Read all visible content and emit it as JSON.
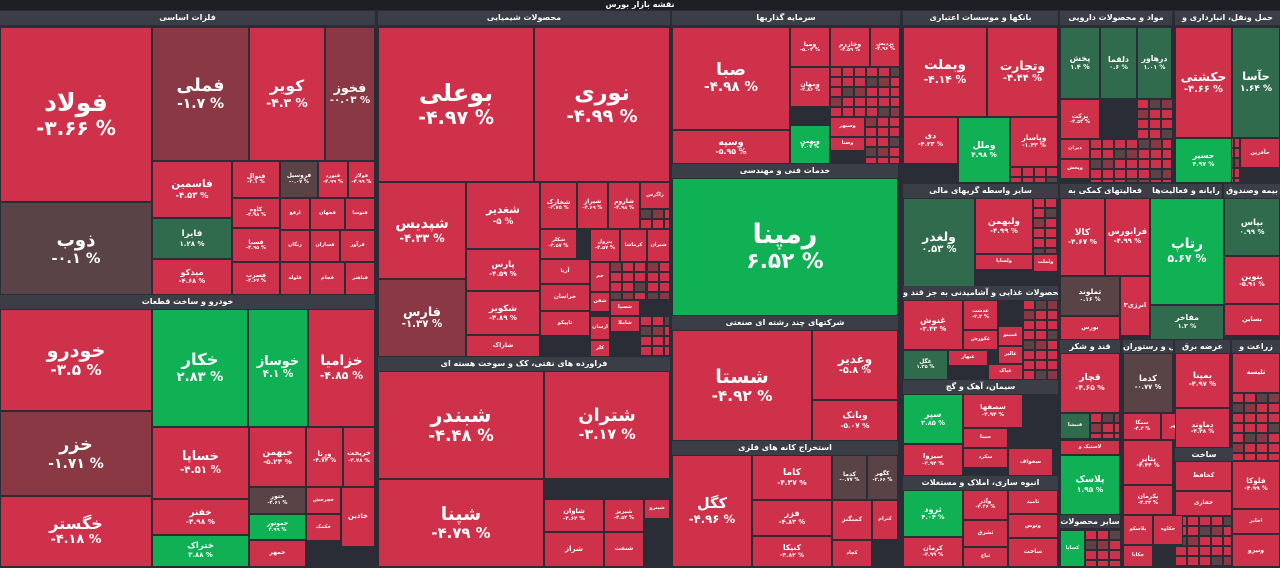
{
  "header": {
    "title": "نقشه بازار بورس"
  },
  "colors": {
    "red": "#d0314a",
    "dark_red": "#8a3844",
    "muted": "#5a4346",
    "green": "#10b155",
    "dark_green": "#2f6b4c",
    "header_bg": "#3b3e46",
    "page_bg": "#2a2d35"
  },
  "sectors": [
    {
      "name": "فلزات اساسی"
    },
    {
      "name": "محصولات شیمیایی"
    },
    {
      "name": "سرمایه گذاریها"
    },
    {
      "name": "بانکها و موسسات اعتباری"
    },
    {
      "name": "مواد و محصولات دارویی"
    },
    {
      "name": "حمل ونقل، انبارداری و"
    },
    {
      "name": "خودرو و ساخت قطعات"
    },
    {
      "name": "خدمات فنی و مهندسی"
    },
    {
      "name": "سایر واسطه گریهای مالی"
    },
    {
      "name": "فعالیتهای کمکی به"
    },
    {
      "name": "رایانه و فعالیت‌ها"
    },
    {
      "name": "بیمه وصندوق"
    },
    {
      "name": "فراورده های نفتی، کک و سوخت هسته ای"
    },
    {
      "name": "شرکتهای چند رشته ای صنعتی"
    },
    {
      "name": "محصولات غذایی و آشامیدنی به جز قند و"
    },
    {
      "name": "قند و شکر"
    },
    {
      "name": "هتل و رستوران"
    },
    {
      "name": "انبوه سازی، املاک و مستغلات"
    },
    {
      "name": "سیمان، آهک و گچ"
    },
    {
      "name": "استخراج کانه های فلزی"
    },
    {
      "name": "سایر محصولات"
    },
    {
      "name": "عرضه برق"
    },
    {
      "name": "زراعت و"
    },
    {
      "name": "ساخت"
    }
  ],
  "tiles": [
    {
      "symbol": "فولاد",
      "change": "-۳.۶۶ %",
      "tone": "red"
    },
    {
      "symbol": "ذوب",
      "change": "-۰.۱ %",
      "tone": "muted"
    },
    {
      "symbol": "فملی",
      "change": "-۱.۷ %",
      "tone": "dark_red"
    },
    {
      "symbol": "کویر",
      "change": "-۴.۳ %",
      "tone": "red"
    },
    {
      "symbol": "فخوز",
      "change": "-۰.۰۳ %",
      "tone": "dark_red"
    },
    {
      "symbol": "فاسمین",
      "change": "-۴.۵۳ %",
      "tone": "red"
    },
    {
      "symbol": "فنوال",
      "change": "-۴.۱ %",
      "tone": "red"
    },
    {
      "symbol": "فروسیل",
      "change": "-۰.۰۷ %",
      "tone": "muted"
    },
    {
      "symbol": "فنورد",
      "change": "-۴.۹۹ %",
      "tone": "red"
    },
    {
      "symbol": "فولاژ",
      "change": "-۴.۹۹ %",
      "tone": "red"
    },
    {
      "symbol": "فایرا",
      "change": "۱.۲۸ %",
      "tone": "dark_green"
    },
    {
      "symbol": "کاوه",
      "change": "-۴.۹۸ %",
      "tone": "red"
    },
    {
      "symbol": "فسبا",
      "change": "-۴.۹۵ %",
      "tone": "red"
    },
    {
      "symbol": "میدکو",
      "change": "-۴.۶۸ %",
      "tone": "red"
    },
    {
      "symbol": "فسرب",
      "change": "-۴.۶۷ %",
      "tone": "red"
    },
    {
      "symbol": "ارفع",
      "change": "",
      "tone": "red"
    },
    {
      "symbol": "فجهان",
      "change": "",
      "tone": "red"
    },
    {
      "symbol": "فتوسا",
      "change": "",
      "tone": "red"
    },
    {
      "symbol": "فلوله",
      "change": "",
      "tone": "red"
    },
    {
      "symbol": "زنگان",
      "change": "",
      "tone": "red"
    },
    {
      "symbol": "فسازان",
      "change": "",
      "tone": "red"
    },
    {
      "symbol": "فرآور",
      "change": "",
      "tone": "red"
    },
    {
      "symbol": "فجام",
      "change": "",
      "tone": "red"
    },
    {
      "symbol": "فباهنر",
      "change": "",
      "tone": "red"
    },
    {
      "symbol": "بوعلی",
      "change": "-۴.۹۷ %",
      "tone": "red"
    },
    {
      "symbol": "نوری",
      "change": "-۴.۹۹ %",
      "tone": "red"
    },
    {
      "symbol": "شپدیس",
      "change": "-۴.۳۳ %",
      "tone": "red"
    },
    {
      "symbol": "فارس",
      "change": "-۱.۳۷ %",
      "tone": "dark_red"
    },
    {
      "symbol": "شغدیر",
      "change": "-۵ %",
      "tone": "red"
    },
    {
      "symbol": "پارس",
      "change": "-۴.۵۹ %",
      "tone": "red"
    },
    {
      "symbol": "شکویر",
      "change": "-۴.۸۹ %",
      "tone": "red"
    },
    {
      "symbol": "شپاکسا",
      "change": "",
      "tone": "red"
    },
    {
      "symbol": "شاراک",
      "change": "",
      "tone": "red"
    },
    {
      "symbol": "شخارک",
      "change": "-۴.۷۵ %",
      "tone": "red"
    },
    {
      "symbol": "شیراز",
      "change": "-۴.۶۹ %",
      "tone": "red"
    },
    {
      "symbol": "شاروم",
      "change": "-۴.۹۸ %",
      "tone": "red"
    },
    {
      "symbol": "زاگرس",
      "change": "",
      "tone": "red"
    },
    {
      "symbol": "شکلر",
      "change": "-۴.۵۷ %",
      "tone": "red"
    },
    {
      "symbol": "پترول",
      "change": "-۴.۵۷ %",
      "tone": "red"
    },
    {
      "symbol": "کرماشا",
      "change": "",
      "tone": "red"
    },
    {
      "symbol": "شیران",
      "change": "",
      "tone": "red"
    },
    {
      "symbol": "آریا",
      "change": "",
      "tone": "red"
    },
    {
      "symbol": "تاپیکو",
      "change": "",
      "tone": "red"
    },
    {
      "symbol": "خراسان",
      "change": "",
      "tone": "red"
    },
    {
      "symbol": "جم",
      "change": "",
      "tone": "red"
    },
    {
      "symbol": "شفن",
      "change": "",
      "tone": "red"
    },
    {
      "symbol": "شسپا",
      "change": "",
      "tone": "red"
    },
    {
      "symbol": "شاملا",
      "change": "",
      "tone": "red"
    },
    {
      "symbol": "ارسان",
      "change": "",
      "tone": "red"
    },
    {
      "symbol": "کلر",
      "change": "",
      "tone": "red"
    },
    {
      "symbol": "صبا",
      "change": "-۴.۹۸ %",
      "tone": "red"
    },
    {
      "symbol": "ومیا",
      "change": "-۵.۰۴ %",
      "tone": "red"
    },
    {
      "symbol": "وخارزم",
      "change": "-۴.۵۹ %",
      "tone": "red"
    },
    {
      "symbol": "پردیس",
      "change": "-۴.۹۶ %",
      "tone": "red"
    },
    {
      "symbol": "ومهان",
      "change": "-۴.۸۶ %",
      "tone": "red"
    },
    {
      "symbol": "وسپه",
      "change": "-۵.۹۵ %",
      "tone": "red"
    },
    {
      "symbol": "وبهمن",
      "change": "۲.۰۷ %",
      "tone": "green"
    },
    {
      "symbol": "وسپهر",
      "change": "",
      "tone": "red"
    },
    {
      "symbol": "وصنا",
      "change": "",
      "tone": "red"
    },
    {
      "symbol": "رمپنا",
      "change": "۶.۵۲ %",
      "tone": "green"
    },
    {
      "symbol": "وبملت",
      "change": "-۴.۱۴ %",
      "tone": "red"
    },
    {
      "symbol": "وتجارت",
      "change": "-۴.۴۴ %",
      "tone": "red"
    },
    {
      "symbol": "دی",
      "change": "-۴.۲۳ %",
      "tone": "red"
    },
    {
      "symbol": "وملل",
      "change": "۴.۹۸ %",
      "tone": "green"
    },
    {
      "symbol": "وپاسار",
      "change": "-۱.۴۳ %",
      "tone": "red"
    },
    {
      "symbol": "پخش",
      "change": "۱.۴ %",
      "tone": "dark_green"
    },
    {
      "symbol": "دلقما",
      "change": "۰.۶ %",
      "tone": "dark_green"
    },
    {
      "symbol": "درهاور",
      "change": "۱.۰۱ %",
      "tone": "dark_green"
    },
    {
      "symbol": "برکت",
      "change": "-۴.۵۳ %",
      "tone": "red"
    },
    {
      "symbol": "دیران",
      "change": "",
      "tone": "red"
    },
    {
      "symbol": "وپخش",
      "change": "",
      "tone": "red"
    },
    {
      "symbol": "حکشتی",
      "change": "-۴.۶۶ %",
      "tone": "red"
    },
    {
      "symbol": "حآسا",
      "change": "۱.۶۴ %",
      "tone": "dark_green"
    },
    {
      "symbol": "حسیر",
      "change": "۴.۹۷ %",
      "tone": "green"
    },
    {
      "symbol": "حآفرین",
      "change": "",
      "tone": "red"
    },
    {
      "symbol": "خودرو",
      "change": "-۳.۵ %",
      "tone": "red"
    },
    {
      "symbol": "خزر",
      "change": "-۱.۷۱ %",
      "tone": "dark_red"
    },
    {
      "symbol": "خگستر",
      "change": "-۴.۱۸ %",
      "tone": "red"
    },
    {
      "symbol": "خکار",
      "change": "۲.۸۳ %",
      "tone": "green"
    },
    {
      "symbol": "خوساز",
      "change": "۴.۱ %",
      "tone": "green"
    },
    {
      "symbol": "خزامیا",
      "change": "-۴.۸۵ %",
      "tone": "red"
    },
    {
      "symbol": "خساپا",
      "change": "-۴.۵۱ %",
      "tone": "red"
    },
    {
      "symbol": "خبهمن",
      "change": "-۵.۲۴ %",
      "tone": "red"
    },
    {
      "symbol": "ورنا",
      "change": "-۴.۷۴ %",
      "tone": "red"
    },
    {
      "symbol": "خریخت",
      "change": "-۴.۷۸ %",
      "tone": "red"
    },
    {
      "symbol": "خفنر",
      "change": "-۴.۹۸ %",
      "tone": "red"
    },
    {
      "symbol": "ختور",
      "change": "-۴.۶۱ %",
      "tone": "muted"
    },
    {
      "symbol": "خموتور",
      "change": "۴.۹۹ %",
      "tone": "green"
    },
    {
      "symbol": "ختراک",
      "change": "۳.۸۸ %",
      "tone": "green"
    },
    {
      "symbol": "خمهر",
      "change": "",
      "tone": "red"
    },
    {
      "symbol": "خکمک",
      "change": "",
      "tone": "red"
    },
    {
      "symbol": "خچرخش",
      "change": "",
      "tone": "red"
    },
    {
      "symbol": "خاذین",
      "change": "",
      "tone": "red"
    },
    {
      "symbol": "ولغدر",
      "change": "۰.۵۳ %",
      "tone": "dark_green"
    },
    {
      "symbol": "ولبهمن",
      "change": "-۴.۹۹ %",
      "tone": "red"
    },
    {
      "symbol": "ولساپا",
      "change": "",
      "tone": "red"
    },
    {
      "symbol": "ولملت",
      "change": "",
      "tone": "red"
    },
    {
      "symbol": "کالا",
      "change": "-۴.۶۷ %",
      "tone": "red"
    },
    {
      "symbol": "فرابورس",
      "change": "-۴.۹۹ %",
      "tone": "red"
    },
    {
      "symbol": "تملوند",
      "change": "۰.۱۶ %",
      "tone": "muted"
    },
    {
      "symbol": "انرژی۳",
      "change": "",
      "tone": "red"
    },
    {
      "symbol": "بورس",
      "change": "",
      "tone": "red"
    },
    {
      "symbol": "رتاپ",
      "change": "۵.۶۷ %",
      "tone": "green"
    },
    {
      "symbol": "بپاس",
      "change": "۰.۹۹ %",
      "tone": "dark_green"
    },
    {
      "symbol": "بنوین",
      "change": "-۵.۹۱ %",
      "tone": "red"
    },
    {
      "symbol": "مفاخر",
      "change": "۱.۲ %",
      "tone": "dark_green"
    },
    {
      "symbol": "بساین",
      "change": "",
      "tone": "red"
    },
    {
      "symbol": "شبندر",
      "change": "-۴.۴۸ %",
      "tone": "red"
    },
    {
      "symbol": "شتران",
      "change": "-۳.۱۷ %",
      "tone": "red"
    },
    {
      "symbol": "شپنا",
      "change": "-۴.۷۹ %",
      "tone": "red"
    },
    {
      "symbol": "شاوان",
      "change": "-۴.۶۴ %",
      "tone": "red"
    },
    {
      "symbol": "شبریز",
      "change": "-۴.۵۲ %",
      "tone": "red"
    },
    {
      "symbol": "شپترو",
      "change": "",
      "tone": "red"
    },
    {
      "symbol": "شراز",
      "change": "",
      "tone": "red"
    },
    {
      "symbol": "شنفت",
      "change": "",
      "tone": "red"
    },
    {
      "symbol": "شستا",
      "change": "-۴.۹۲ %",
      "tone": "red"
    },
    {
      "symbol": "وغدیر",
      "change": "-۵.۸ %",
      "tone": "red"
    },
    {
      "symbol": "وبانک",
      "change": "-۵.۰۷ %",
      "tone": "red"
    },
    {
      "symbol": "غدشت",
      "change": "-۳.۲ %",
      "tone": "red"
    },
    {
      "symbol": "غنوش",
      "change": "-۳.۴۳ %",
      "tone": "red"
    },
    {
      "symbol": "غکورش",
      "change": "",
      "tone": "red"
    },
    {
      "symbol": "غمینو",
      "change": "",
      "tone": "red"
    },
    {
      "symbol": "غالبر",
      "change": "",
      "tone": "red"
    },
    {
      "symbol": "غگل",
      "change": "۱.۳۵ %",
      "tone": "dark_green"
    },
    {
      "symbol": "غبهار",
      "change": "",
      "tone": "red"
    },
    {
      "symbol": "غپاک",
      "change": "",
      "tone": "red"
    },
    {
      "symbol": "قچار",
      "change": "-۴.۶۵ %",
      "tone": "red"
    },
    {
      "symbol": "قشکر",
      "change": "",
      "tone": "red"
    },
    {
      "symbol": "قنیشا",
      "change": "",
      "tone": "dark_green"
    },
    {
      "symbol": "کدما",
      "change": "-۰.۷۷ %",
      "tone": "muted"
    },
    {
      "symbol": "رتاپ",
      "change": "",
      "tone": "red"
    },
    {
      "symbol": "سمگا",
      "change": "-۴.۴ %",
      "tone": "red"
    },
    {
      "symbol": "کگهر",
      "change": "",
      "tone": "red"
    },
    {
      "symbol": "ثرود",
      "change": "۴.۰۴ %",
      "tone": "green"
    },
    {
      "symbol": "وآذر",
      "change": "-۴.۴۶ %",
      "tone": "red"
    },
    {
      "symbol": "ثامید",
      "change": "",
      "tone": "red"
    },
    {
      "symbol": "ثشرق",
      "change": "",
      "tone": "red"
    },
    {
      "symbol": "وتوس",
      "change": "",
      "tone": "red"
    },
    {
      "symbol": "کرمان",
      "change": "-۴.۹۹ %",
      "tone": "red"
    },
    {
      "symbol": "ثباغ",
      "change": "",
      "tone": "red"
    },
    {
      "symbol": "ساخت",
      "change": "",
      "tone": "red"
    },
    {
      "symbol": "ثاخت",
      "change": "",
      "tone": "red"
    },
    {
      "symbol": "سپر",
      "change": "۲.۸۵ %",
      "tone": "green"
    },
    {
      "symbol": "سصفها",
      "change": "-۴.۹۴ %",
      "tone": "red"
    },
    {
      "symbol": "سیتا",
      "change": "",
      "tone": "red"
    },
    {
      "symbol": "سکرد",
      "change": "",
      "tone": "red"
    },
    {
      "symbol": "سیزوا",
      "change": "-۴.۹۴ %",
      "tone": "red"
    },
    {
      "symbol": "سخواف",
      "change": "",
      "tone": "red"
    },
    {
      "symbol": "کگل",
      "change": "-۴.۹۶ %",
      "tone": "red"
    },
    {
      "symbol": "کاما",
      "change": "-۴.۳۷ %",
      "tone": "red"
    },
    {
      "symbol": "کدما",
      "change": "-۰.۷۷ %",
      "tone": "muted"
    },
    {
      "symbol": "کگهر",
      "change": "-۲.۶۶ %",
      "tone": "muted"
    },
    {
      "symbol": "فزر",
      "change": "-۴.۸۳ %",
      "tone": "red"
    },
    {
      "symbol": "کچاد",
      "change": "",
      "tone": "red"
    },
    {
      "symbol": "کنیکا",
      "change": "-۴.۸۲ %",
      "tone": "red"
    },
    {
      "symbol": "کمنگنز",
      "change": "",
      "tone": "red"
    },
    {
      "symbol": "ومعادن",
      "change": "-۴.۹۷ %",
      "tone": "red"
    },
    {
      "symbol": "کترام",
      "change": "",
      "tone": "red"
    },
    {
      "symbol": "لاستیک و",
      "change": "",
      "tone": "red"
    },
    {
      "symbol": "پلاسک",
      "change": "۱.۹۵ %",
      "tone": "green"
    },
    {
      "symbol": "پتایر",
      "change": "-۴.۴۴ %",
      "tone": "red"
    },
    {
      "symbol": "پکرمان",
      "change": "-۴.۳۳ %",
      "tone": "red"
    },
    {
      "symbol": "کساپا",
      "change": "",
      "tone": "green"
    },
    {
      "symbol": "پلاسکو",
      "change": "",
      "tone": "red"
    },
    {
      "symbol": "خکاوه",
      "change": "",
      "tone": "red"
    },
    {
      "symbol": "بمپنا",
      "change": "-۴.۹۷ %",
      "tone": "red"
    },
    {
      "symbol": "دماوند",
      "change": "-۴.۴۸ %",
      "tone": "red"
    },
    {
      "symbol": "تلیسه",
      "change": "",
      "tone": "red"
    },
    {
      "symbol": "فلوکا",
      "change": "-۴.۹۹ %",
      "tone": "red"
    },
    {
      "symbol": "اخابر",
      "change": "",
      "tone": "red"
    },
    {
      "symbol": "کحافظ",
      "change": "",
      "tone": "red"
    },
    {
      "symbol": "حفاری",
      "change": "",
      "tone": "red"
    },
    {
      "symbol": "چکاپا",
      "change": "",
      "tone": "red"
    },
    {
      "symbol": "ونیرو",
      "change": "",
      "tone": "red"
    }
  ]
}
